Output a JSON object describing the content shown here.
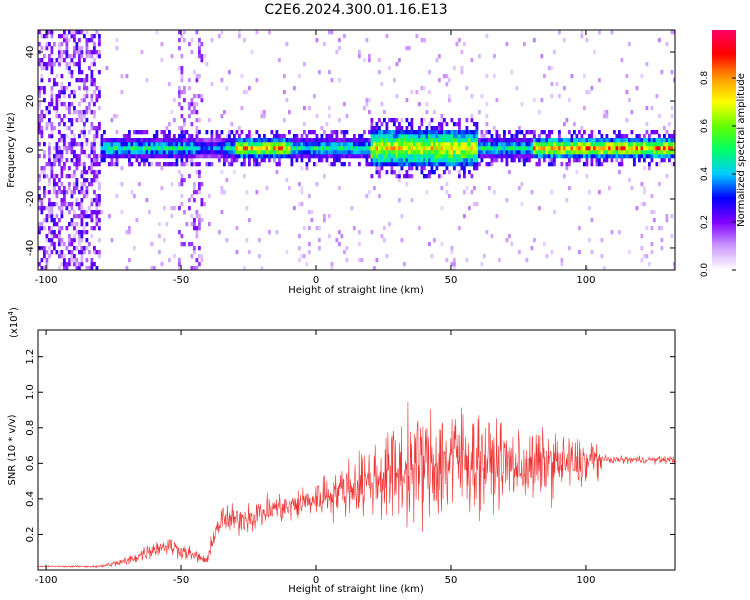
{
  "title": "C2E6.2024.300.01.16.E13",
  "chart_data": [
    {
      "type": "heatmap",
      "xlabel": "Height of straight line (km)",
      "ylabel": "Frequency (Hz)",
      "xlim": [
        -103,
        133
      ],
      "ylim": [
        -49,
        49
      ],
      "x_ticks": [
        -100,
        -50,
        0,
        50,
        100
      ],
      "y_ticks": [
        -40,
        -20,
        0,
        20,
        40
      ],
      "colorbar": {
        "label": "Normalized spectral amplitude",
        "range": [
          0,
          1
        ],
        "ticks": [
          0.0,
          0.2,
          0.4,
          0.6,
          0.8
        ],
        "tick_labels": [
          "0.0",
          "0.2",
          "0.4",
          "0.6",
          "0.8"
        ],
        "colors": [
          "#ffffff",
          "#cc99ff",
          "#7f00ff",
          "#0000ff",
          "#00ccff",
          "#00ff66",
          "#66ff00",
          "#ffff00",
          "#ff9900",
          "#ff0000",
          "#ff0066"
        ]
      },
      "description_points": {
        "band_center_hz": 0,
        "noise_region_km": [
          -103,
          -80
        ],
        "noise_column_km": -45,
        "peak_amplitude_regions_km": [
          [
            -30,
            -10
          ],
          [
            20,
            60
          ],
          [
            80,
            133
          ]
        ]
      }
    },
    {
      "type": "line",
      "xlabel": "Height of straight line (km)",
      "ylabel": "SNR (10 * v/v)",
      "y_multiplier": "(x10",
      "y_multiplier_exp": "4",
      "xlim": [
        -103,
        133
      ],
      "ylim": [
        0,
        1.35
      ],
      "x_ticks": [
        -100,
        -50,
        0,
        50,
        100
      ],
      "y_ticks": [
        0.2,
        0.4,
        0.6,
        0.8,
        1.0,
        1.2
      ],
      "series_color": "#ee3333",
      "envelope": {
        "x": [
          -103,
          -80,
          -70,
          -60,
          -55,
          -45,
          -40,
          -38,
          -35,
          -30,
          -25,
          -20,
          -15,
          -10,
          -5,
          0,
          5,
          10,
          15,
          20,
          25,
          30,
          35,
          40,
          45,
          50,
          55,
          60,
          65,
          70,
          75,
          80,
          85,
          90,
          95,
          100,
          104,
          106,
          110,
          120,
          133
        ],
        "mean": [
          0.02,
          0.02,
          0.05,
          0.12,
          0.14,
          0.08,
          0.05,
          0.2,
          0.28,
          0.28,
          0.3,
          0.32,
          0.35,
          0.35,
          0.38,
          0.4,
          0.43,
          0.45,
          0.48,
          0.5,
          0.53,
          0.55,
          0.57,
          0.58,
          0.6,
          0.62,
          0.62,
          0.62,
          0.6,
          0.6,
          0.58,
          0.58,
          0.6,
          0.6,
          0.6,
          0.6,
          0.62,
          0.62,
          0.62,
          0.62,
          0.62
        ],
        "spread": [
          0.005,
          0.01,
          0.04,
          0.07,
          0.08,
          0.05,
          0.04,
          0.1,
          0.12,
          0.12,
          0.12,
          0.14,
          0.12,
          0.12,
          0.14,
          0.14,
          0.2,
          0.2,
          0.25,
          0.3,
          0.35,
          0.4,
          0.45,
          0.45,
          0.5,
          0.5,
          0.45,
          0.4,
          0.35,
          0.3,
          0.3,
          0.28,
          0.28,
          0.25,
          0.22,
          0.2,
          0.2,
          0.03,
          0.03,
          0.03,
          0.03
        ]
      }
    }
  ]
}
